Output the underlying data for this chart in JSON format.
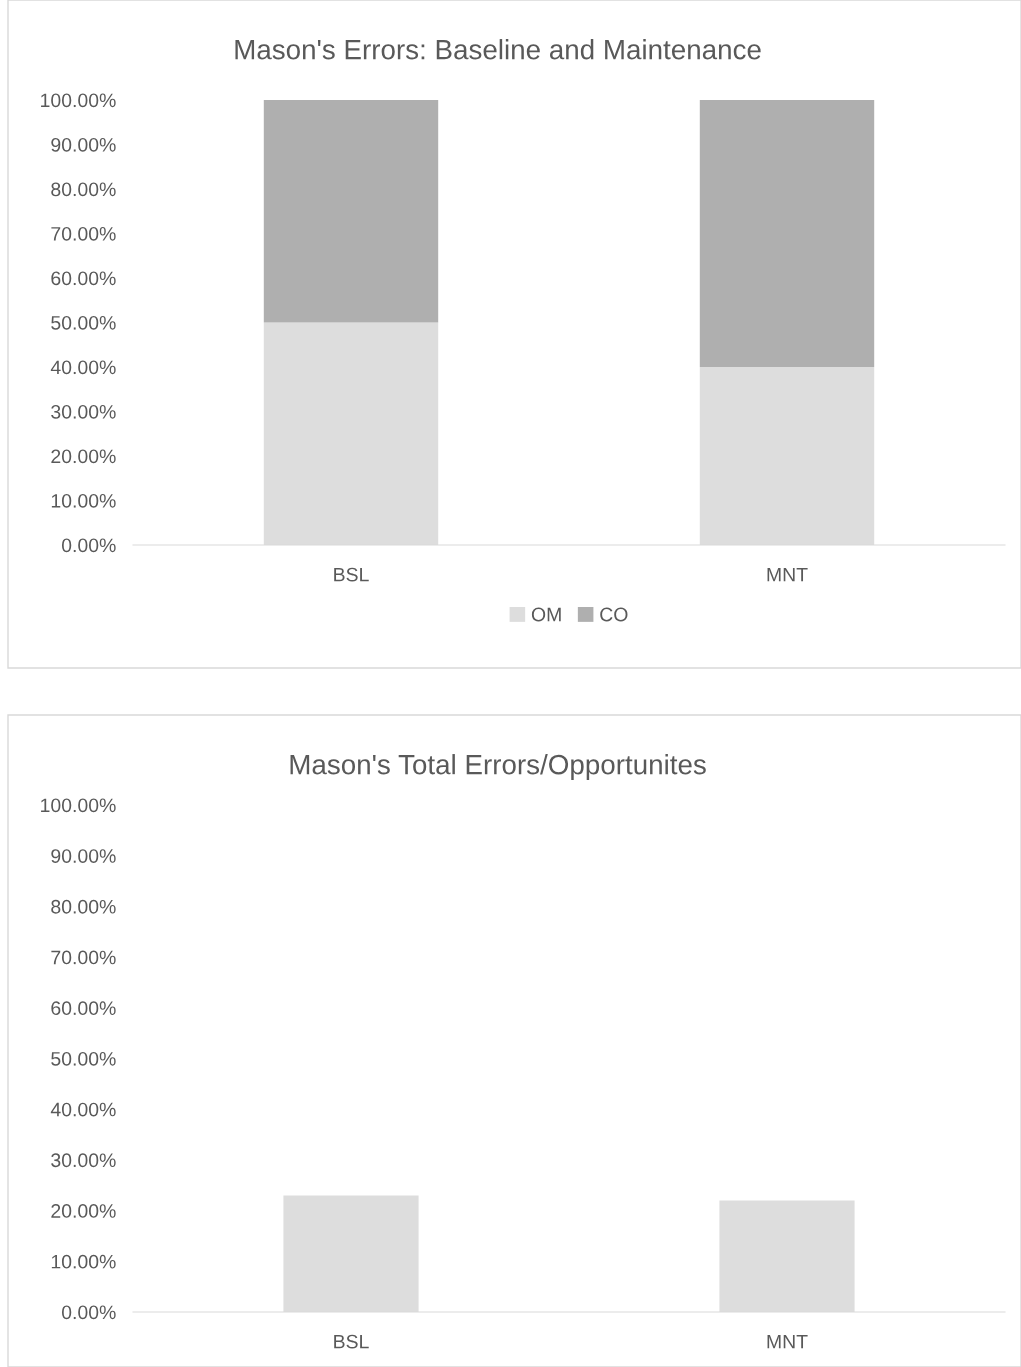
{
  "chart_data": [
    {
      "type": "bar",
      "title": "Mason's Errors: Baseline and Maintenance",
      "categories": [
        "BSL",
        "MNT"
      ],
      "stacked": true,
      "legend": "bottom",
      "grid": false,
      "ylim": [
        0,
        100
      ],
      "yticks": [
        {
          "value": 0,
          "label": "0.00%"
        },
        {
          "value": 10,
          "label": "10.00%"
        },
        {
          "value": 20,
          "label": "20.00%"
        },
        {
          "value": 30,
          "label": "30.00%"
        },
        {
          "value": 40,
          "label": "40.00%"
        },
        {
          "value": 50,
          "label": "50.00%"
        },
        {
          "value": 60,
          "label": "60.00%"
        },
        {
          "value": 70,
          "label": "70.00%"
        },
        {
          "value": 80,
          "label": "80.00%"
        },
        {
          "value": 90,
          "label": "90.00%"
        },
        {
          "value": 100,
          "label": "100.00%"
        }
      ],
      "series": [
        {
          "name": "OM",
          "color": "#dddddd",
          "values": [
            50,
            40
          ]
        },
        {
          "name": "CO",
          "color": "#afafaf",
          "values": [
            50,
            60
          ]
        }
      ]
    },
    {
      "type": "bar",
      "title": "Mason's Total Errors/Opportunites",
      "categories": [
        "BSL",
        "MNT"
      ],
      "grid": false,
      "ylim": [
        0,
        100
      ],
      "yticks": [
        {
          "value": 0,
          "label": "0.00%"
        },
        {
          "value": 10,
          "label": "10.00%"
        },
        {
          "value": 20,
          "label": "20.00%"
        },
        {
          "value": 30,
          "label": "30.00%"
        },
        {
          "value": 40,
          "label": "40.00%"
        },
        {
          "value": 50,
          "label": "50.00%"
        },
        {
          "value": 60,
          "label": "60.00%"
        },
        {
          "value": 70,
          "label": "70.00%"
        },
        {
          "value": 80,
          "label": "80.00%"
        },
        {
          "value": 90,
          "label": "90.00%"
        },
        {
          "value": 100,
          "label": "100.00%"
        }
      ],
      "series": [
        {
          "color": "#dddddd",
          "values": [
            23,
            22
          ]
        }
      ]
    }
  ]
}
